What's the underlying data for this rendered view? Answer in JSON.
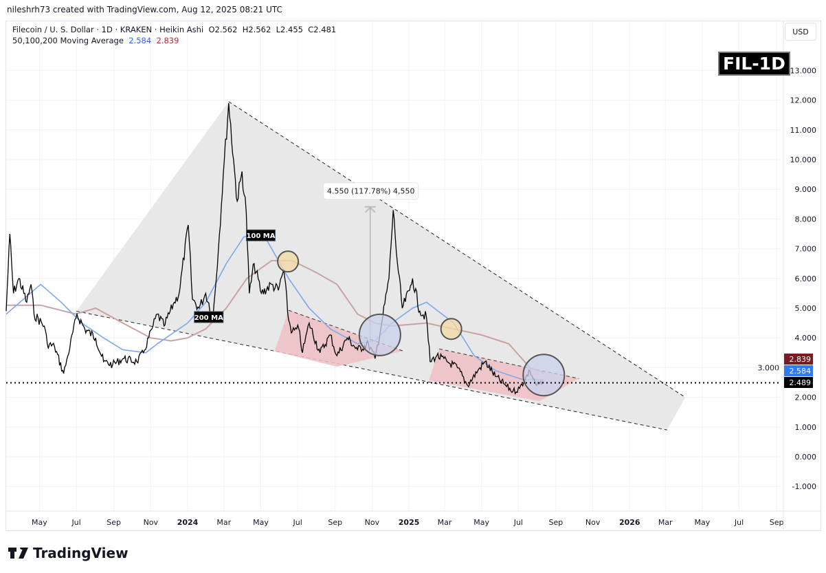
{
  "credit": "nileshrh73 created with TradingView.com, Aug 12, 2025 08:21 UTC",
  "legend": {
    "symbol_line": "Filecoin / U. S. Dollar · 1D · KRAKEN · Heikin Ashi",
    "ohlc": "O2.562  H2.562  L2.455  C2.481",
    "ma_label": "50,100,200 Moving Average",
    "ma_blue": "2.584",
    "ma_red": "2.839"
  },
  "currency_button": "USD",
  "ticker_badge": "FIL-1D",
  "brand": "TradingView",
  "colors": {
    "price": "#000000",
    "ma100": "#7ba7ee",
    "ma200": "#c9a3a3",
    "wedge": "#e6e6e6",
    "channel": "#eebfc3",
    "yellow_circle": "#f3d9a4",
    "blue_circle": "#c9d2ec",
    "last_ma200": "#7a1b22",
    "last_ma100": "#2f7bf5",
    "last_price": "#000000"
  },
  "chart_data": {
    "type": "line",
    "title": "",
    "xlabel": "",
    "ylabel": "",
    "ylim": [
      -1.3,
      14.3
    ],
    "yticks": [
      "13.000",
      "12.000",
      "11.000",
      "10.000",
      "9.000",
      "8.000",
      "7.000",
      "6.000",
      "5.000",
      "4.000",
      "3.000",
      "2.000",
      "1.000",
      "0.000",
      "-1.000"
    ],
    "xticks": [
      {
        "label": "May",
        "date": "2023-05-01"
      },
      {
        "label": "Jul",
        "date": "2023-07-01"
      },
      {
        "label": "Sep",
        "date": "2023-09-01"
      },
      {
        "label": "Nov",
        "date": "2023-11-01"
      },
      {
        "label": "2024",
        "date": "2024-01-01"
      },
      {
        "label": "Mar",
        "date": "2024-03-01"
      },
      {
        "label": "May",
        "date": "2024-05-01"
      },
      {
        "label": "Jul",
        "date": "2024-07-01"
      },
      {
        "label": "Sep",
        "date": "2024-09-01"
      },
      {
        "label": "Nov",
        "date": "2024-11-01"
      },
      {
        "label": "2025",
        "date": "2025-01-01"
      },
      {
        "label": "Mar",
        "date": "2025-03-01"
      },
      {
        "label": "May",
        "date": "2025-05-01"
      },
      {
        "label": "Jul",
        "date": "2025-07-01"
      },
      {
        "label": "Sep",
        "date": "2025-09-01"
      },
      {
        "label": "Nov",
        "date": "2025-11-01"
      },
      {
        "label": "2026",
        "date": "2026-01-01"
      },
      {
        "label": "Mar",
        "date": "2026-03-01"
      },
      {
        "label": "May",
        "date": "2026-05-01"
      },
      {
        "label": "Jul",
        "date": "2026-07-01"
      },
      {
        "label": "Sep",
        "date": "2026-09-01"
      }
    ],
    "grid": true,
    "series": [
      {
        "key": "price",
        "points": [
          [
            "2023-03-07",
            4.9
          ],
          [
            "2023-03-13",
            7.5
          ],
          [
            "2023-03-19",
            5.5
          ],
          [
            "2023-03-28",
            6.0
          ],
          [
            "2023-04-10",
            5.2
          ],
          [
            "2023-04-17",
            5.8
          ],
          [
            "2023-04-22",
            4.8
          ],
          [
            "2023-05-09",
            4.4
          ],
          [
            "2023-05-14",
            3.8
          ],
          [
            "2023-05-26",
            3.7
          ],
          [
            "2023-06-10",
            2.8
          ],
          [
            "2023-06-17",
            3.4
          ],
          [
            "2023-07-02",
            4.8
          ],
          [
            "2023-07-15",
            4.3
          ],
          [
            "2023-08-02",
            4.0
          ],
          [
            "2023-08-15",
            3.2
          ],
          [
            "2023-08-30",
            3.1
          ],
          [
            "2023-09-16",
            3.3
          ],
          [
            "2023-10-09",
            3.2
          ],
          [
            "2023-10-20",
            3.5
          ],
          [
            "2023-11-03",
            4.3
          ],
          [
            "2023-11-12",
            4.8
          ],
          [
            "2023-11-23",
            4.4
          ],
          [
            "2023-12-10",
            5.2
          ],
          [
            "2023-12-18",
            5.5
          ],
          [
            "2024-01-02",
            7.8
          ],
          [
            "2024-01-09",
            5.3
          ],
          [
            "2024-01-20",
            5.0
          ],
          [
            "2024-01-31",
            5.5
          ],
          [
            "2024-02-12",
            4.7
          ],
          [
            "2024-02-21",
            7.0
          ],
          [
            "2024-02-29",
            9.5
          ],
          [
            "2024-03-09",
            11.9
          ],
          [
            "2024-03-17",
            10.0
          ],
          [
            "2024-03-23",
            8.6
          ],
          [
            "2024-03-31",
            9.6
          ],
          [
            "2024-04-07",
            8.2
          ],
          [
            "2024-04-12",
            5.5
          ],
          [
            "2024-04-20",
            6.5
          ],
          [
            "2024-05-02",
            5.5
          ],
          [
            "2024-05-19",
            5.8
          ],
          [
            "2024-05-30",
            5.6
          ],
          [
            "2024-06-08",
            6.3
          ],
          [
            "2024-06-16",
            4.6
          ],
          [
            "2024-06-22",
            4.2
          ],
          [
            "2024-07-03",
            4.3
          ],
          [
            "2024-07-09",
            3.5
          ],
          [
            "2024-07-20",
            4.5
          ],
          [
            "2024-08-07",
            3.5
          ],
          [
            "2024-08-24",
            4.1
          ],
          [
            "2024-09-04",
            3.4
          ],
          [
            "2024-09-21",
            4.0
          ],
          [
            "2024-10-08",
            3.6
          ],
          [
            "2024-10-26",
            3.8
          ],
          [
            "2024-11-06",
            3.3
          ],
          [
            "2024-11-17",
            4.5
          ],
          [
            "2024-11-29",
            6.0
          ],
          [
            "2024-12-06",
            8.3
          ],
          [
            "2024-12-13",
            6.5
          ],
          [
            "2024-12-21",
            5.0
          ],
          [
            "2025-01-02",
            5.6
          ],
          [
            "2025-01-07",
            6.0
          ],
          [
            "2025-01-19",
            4.9
          ],
          [
            "2025-01-30",
            4.7
          ],
          [
            "2025-02-05",
            3.2
          ],
          [
            "2025-02-16",
            3.4
          ],
          [
            "2025-03-05",
            3.2
          ],
          [
            "2025-03-22",
            3.0
          ],
          [
            "2025-04-08",
            2.4
          ],
          [
            "2025-04-25",
            2.9
          ],
          [
            "2025-05-07",
            3.2
          ],
          [
            "2025-05-24",
            2.7
          ],
          [
            "2025-06-10",
            2.4
          ],
          [
            "2025-06-22",
            2.2
          ],
          [
            "2025-07-03",
            2.3
          ],
          [
            "2025-07-20",
            2.9
          ],
          [
            "2025-07-31",
            2.4
          ],
          [
            "2025-08-12",
            2.48
          ]
        ]
      },
      {
        "key": "ma100",
        "points": [
          [
            "2023-03-07",
            4.8
          ],
          [
            "2023-05-03",
            5.8
          ],
          [
            "2023-06-06",
            5.2
          ],
          [
            "2023-07-10",
            4.5
          ],
          [
            "2023-08-15",
            4.0
          ],
          [
            "2023-09-16",
            3.6
          ],
          [
            "2023-10-24",
            3.5
          ],
          [
            "2023-11-12",
            3.8
          ],
          [
            "2024-01-01",
            4.5
          ],
          [
            "2024-01-31",
            5.2
          ],
          [
            "2024-03-05",
            6.5
          ],
          [
            "2024-04-03",
            7.4
          ],
          [
            "2024-05-05",
            7.5
          ],
          [
            "2024-06-16",
            6.0
          ],
          [
            "2024-07-20",
            5.0
          ],
          [
            "2024-08-24",
            4.3
          ],
          [
            "2024-10-08",
            3.8
          ],
          [
            "2024-11-06",
            3.9
          ],
          [
            "2024-12-04",
            4.5
          ],
          [
            "2025-01-07",
            5.0
          ],
          [
            "2025-01-30",
            5.2
          ],
          [
            "2025-03-16",
            4.5
          ],
          [
            "2025-04-19",
            3.4
          ],
          [
            "2025-05-24",
            2.9
          ],
          [
            "2025-07-08",
            2.6
          ],
          [
            "2025-08-12",
            2.584
          ]
        ]
      },
      {
        "key": "ma200",
        "points": [
          [
            "2023-03-07",
            5.1
          ],
          [
            "2023-05-03",
            5.1
          ],
          [
            "2023-06-30",
            4.8
          ],
          [
            "2023-08-02",
            5.0
          ],
          [
            "2023-09-16",
            4.5
          ],
          [
            "2023-11-01",
            4.0
          ],
          [
            "2023-12-05",
            3.9
          ],
          [
            "2024-01-01",
            4.0
          ],
          [
            "2024-01-31",
            4.3
          ],
          [
            "2024-03-05",
            5.0
          ],
          [
            "2024-04-08",
            6.0
          ],
          [
            "2024-05-19",
            6.6
          ],
          [
            "2024-06-22",
            6.6
          ],
          [
            "2024-08-01",
            6.2
          ],
          [
            "2024-09-04",
            5.8
          ],
          [
            "2024-10-08",
            4.8
          ],
          [
            "2024-11-06",
            4.5
          ],
          [
            "2024-12-04",
            4.4
          ],
          [
            "2025-01-30",
            4.5
          ],
          [
            "2025-03-16",
            4.3
          ],
          [
            "2025-05-01",
            4.1
          ],
          [
            "2025-06-15",
            3.8
          ],
          [
            "2025-07-20",
            3.0
          ],
          [
            "2025-08-12",
            2.839
          ]
        ]
      }
    ],
    "last_values": {
      "ma200": "2.839",
      "ma100": "2.584",
      "price": "2.489"
    },
    "annotations": {
      "wedge": [
        [
          "2023-07-01",
          4.9
        ],
        [
          "2024-03-09",
          11.95
        ],
        [
          "2026-04-03",
          2.0
        ],
        [
          "2026-03-04",
          0.9
        ]
      ],
      "channels": [
        [
          [
            "2024-05-24",
            3.55
          ],
          [
            "2024-06-16",
            4.93
          ],
          [
            "2024-12-22",
            3.56
          ],
          [
            "2024-09-04",
            3.03
          ]
        ],
        [
          [
            "2025-02-03",
            2.57
          ],
          [
            "2025-02-20",
            3.63
          ],
          [
            "2025-10-09",
            2.63
          ],
          [
            "2025-08-05",
            1.87
          ]
        ]
      ],
      "circles": [
        {
          "kind": "yellow",
          "date": "2024-06-15",
          "price": 6.57,
          "r": 15
        },
        {
          "kind": "yellow",
          "date": "2025-03-12",
          "price": 4.3,
          "r": 15
        },
        {
          "kind": "blue",
          "date": "2024-11-14",
          "price": 4.1,
          "r": 30
        },
        {
          "kind": "blue",
          "date": "2025-08-12",
          "price": 2.75,
          "r": 30
        }
      ],
      "measure": {
        "date": "2024-10-29",
        "from": 3.86,
        "to": 8.41,
        "label": "4.550 (117.78%) 4,550"
      },
      "ma_labels": [
        {
          "text": "100 MA",
          "date": "2024-05-01",
          "price": 7.45
        },
        {
          "text": "200 MA",
          "date": "2024-02-05",
          "price": 4.7
        }
      ]
    }
  }
}
